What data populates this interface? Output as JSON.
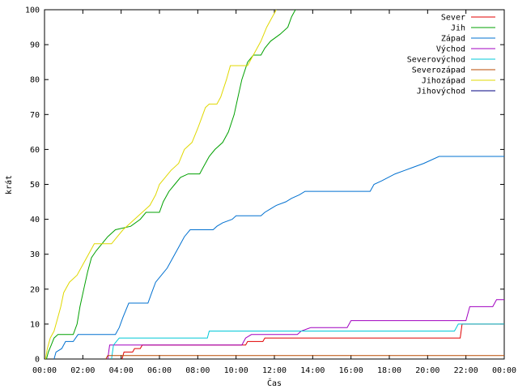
{
  "chart_data": {
    "type": "line",
    "step": true,
    "xlabel": "Čas",
    "ylabel": "krát",
    "xlim": [
      0,
      24
    ],
    "ylim": [
      0,
      100
    ],
    "x_ticks": [
      {
        "value": 0,
        "label": "00:00"
      },
      {
        "value": 2,
        "label": "02:00"
      },
      {
        "value": 4,
        "label": "04:00"
      },
      {
        "value": 6,
        "label": "06:00"
      },
      {
        "value": 8,
        "label": "08:00"
      },
      {
        "value": 10,
        "label": "10:00"
      },
      {
        "value": 12,
        "label": "12:00"
      },
      {
        "value": 14,
        "label": "14:00"
      },
      {
        "value": 16,
        "label": "16:00"
      },
      {
        "value": 18,
        "label": "18:00"
      },
      {
        "value": 20,
        "label": "20:00"
      },
      {
        "value": 22,
        "label": "22:00"
      },
      {
        "value": 24,
        "label": "00:00"
      }
    ],
    "y_ticks": [
      {
        "value": 0,
        "label": "0"
      },
      {
        "value": 10,
        "label": "10"
      },
      {
        "value": 20,
        "label": "20"
      },
      {
        "value": 30,
        "label": "30"
      },
      {
        "value": 40,
        "label": "40"
      },
      {
        "value": 50,
        "label": "50"
      },
      {
        "value": 60,
        "label": "60"
      },
      {
        "value": 70,
        "label": "70"
      },
      {
        "value": 80,
        "label": "80"
      },
      {
        "value": 90,
        "label": "90"
      },
      {
        "value": 100,
        "label": "100"
      }
    ],
    "grid": false,
    "legend_position": "top-right",
    "series": [
      {
        "name": "Sever",
        "color": "#e00000",
        "points": [
          [
            4.05,
            0
          ],
          [
            4.15,
            2
          ],
          [
            4.6,
            2
          ],
          [
            4.7,
            3
          ],
          [
            5.0,
            3
          ],
          [
            5.1,
            4
          ],
          [
            10.5,
            4
          ],
          [
            10.6,
            5
          ],
          [
            11.4,
            5
          ],
          [
            11.5,
            6
          ],
          [
            21.7,
            6
          ],
          [
            21.8,
            10
          ],
          [
            24,
            10
          ]
        ]
      },
      {
        "name": "Jih",
        "color": "#00a000",
        "points": [
          [
            0.1,
            0
          ],
          [
            0.2,
            2
          ],
          [
            0.35,
            4
          ],
          [
            0.5,
            6
          ],
          [
            0.7,
            7
          ],
          [
            1.5,
            7
          ],
          [
            1.7,
            10
          ],
          [
            1.85,
            15
          ],
          [
            2.05,
            20
          ],
          [
            2.25,
            25
          ],
          [
            2.45,
            29
          ],
          [
            2.7,
            31
          ],
          [
            3.0,
            33
          ],
          [
            3.3,
            35
          ],
          [
            3.7,
            37
          ],
          [
            4.5,
            38
          ],
          [
            5.0,
            40
          ],
          [
            5.3,
            42
          ],
          [
            6.0,
            42
          ],
          [
            6.2,
            45
          ],
          [
            6.5,
            48
          ],
          [
            6.8,
            50
          ],
          [
            7.1,
            52
          ],
          [
            7.5,
            53
          ],
          [
            8.1,
            53
          ],
          [
            8.3,
            55
          ],
          [
            8.6,
            58
          ],
          [
            8.9,
            60
          ],
          [
            9.3,
            62
          ],
          [
            9.6,
            65
          ],
          [
            9.9,
            70
          ],
          [
            10.1,
            75
          ],
          [
            10.3,
            80
          ],
          [
            10.6,
            85
          ],
          [
            10.9,
            87
          ],
          [
            11.3,
            87
          ],
          [
            11.5,
            89
          ],
          [
            11.8,
            91
          ],
          [
            12.3,
            93
          ],
          [
            12.7,
            95
          ],
          [
            12.9,
            98
          ],
          [
            13.1,
            100
          ]
        ]
      },
      {
        "name": "Západ",
        "color": "#0070d0",
        "points": [
          [
            0.5,
            0
          ],
          [
            0.6,
            2
          ],
          [
            0.9,
            3
          ],
          [
            1.1,
            5
          ],
          [
            1.5,
            5
          ],
          [
            1.75,
            7
          ],
          [
            3.7,
            7
          ],
          [
            3.9,
            9
          ],
          [
            4.1,
            12
          ],
          [
            4.4,
            16
          ],
          [
            5.4,
            16
          ],
          [
            5.6,
            19
          ],
          [
            5.8,
            22
          ],
          [
            6.1,
            24
          ],
          [
            6.4,
            26
          ],
          [
            6.7,
            29
          ],
          [
            7.0,
            32
          ],
          [
            7.3,
            35
          ],
          [
            7.6,
            37
          ],
          [
            8.8,
            37
          ],
          [
            9.0,
            38
          ],
          [
            9.3,
            39
          ],
          [
            9.8,
            40
          ],
          [
            10.0,
            41
          ],
          [
            11.3,
            41
          ],
          [
            11.5,
            42
          ],
          [
            11.8,
            43
          ],
          [
            12.1,
            44
          ],
          [
            12.6,
            45
          ],
          [
            12.9,
            46
          ],
          [
            13.3,
            47
          ],
          [
            13.6,
            48
          ],
          [
            17.0,
            48
          ],
          [
            17.2,
            50
          ],
          [
            17.6,
            51
          ],
          [
            18.3,
            53
          ],
          [
            18.8,
            54
          ],
          [
            19.8,
            56
          ],
          [
            20.6,
            58
          ],
          [
            24,
            58
          ]
        ]
      },
      {
        "name": "Východ",
        "color": "#a000c0",
        "points": [
          [
            3.3,
            0
          ],
          [
            3.4,
            4
          ],
          [
            10.3,
            4
          ],
          [
            10.5,
            6
          ],
          [
            10.8,
            7
          ],
          [
            13.2,
            7
          ],
          [
            13.4,
            8
          ],
          [
            13.9,
            9
          ],
          [
            15.8,
            9
          ],
          [
            16.0,
            11
          ],
          [
            22.0,
            11
          ],
          [
            22.2,
            15
          ],
          [
            23.4,
            15
          ],
          [
            23.6,
            17
          ],
          [
            24,
            17
          ]
        ]
      },
      {
        "name": "Severovýchod",
        "color": "#00c8d8",
        "points": [
          [
            3.5,
            0
          ],
          [
            3.6,
            4
          ],
          [
            3.9,
            6
          ],
          [
            8.5,
            6
          ],
          [
            8.6,
            8
          ],
          [
            21.4,
            8
          ],
          [
            21.6,
            10
          ],
          [
            24,
            10
          ]
        ]
      },
      {
        "name": "Severozápad",
        "color": "#b84a00",
        "points": [
          [
            3.2,
            0
          ],
          [
            3.3,
            1
          ],
          [
            24,
            1
          ]
        ]
      },
      {
        "name": "Jihozápad",
        "color": "#e0d800",
        "points": [
          [
            0.05,
            0
          ],
          [
            0.15,
            3
          ],
          [
            0.3,
            6
          ],
          [
            0.5,
            8
          ],
          [
            0.7,
            12
          ],
          [
            0.85,
            15
          ],
          [
            1.0,
            19
          ],
          [
            1.3,
            22
          ],
          [
            1.7,
            24
          ],
          [
            2.0,
            27
          ],
          [
            2.3,
            30
          ],
          [
            2.6,
            33
          ],
          [
            3.5,
            33
          ],
          [
            3.8,
            35
          ],
          [
            4.1,
            37
          ],
          [
            4.7,
            40
          ],
          [
            5.1,
            42
          ],
          [
            5.5,
            44
          ],
          [
            5.8,
            47
          ],
          [
            6.0,
            50
          ],
          [
            6.3,
            52
          ],
          [
            6.6,
            54
          ],
          [
            7.0,
            56
          ],
          [
            7.3,
            60
          ],
          [
            7.7,
            62
          ],
          [
            8.0,
            66
          ],
          [
            8.2,
            69
          ],
          [
            8.4,
            72
          ],
          [
            8.6,
            73
          ],
          [
            9.0,
            73
          ],
          [
            9.2,
            75
          ],
          [
            9.5,
            80
          ],
          [
            9.7,
            84
          ],
          [
            10.6,
            84
          ],
          [
            10.8,
            86
          ],
          [
            11.0,
            88
          ],
          [
            11.3,
            91
          ],
          [
            11.6,
            95
          ],
          [
            11.9,
            98
          ],
          [
            12.1,
            100
          ]
        ]
      },
      {
        "name": "Jihovýchod",
        "color": "#000080",
        "points": []
      }
    ]
  }
}
